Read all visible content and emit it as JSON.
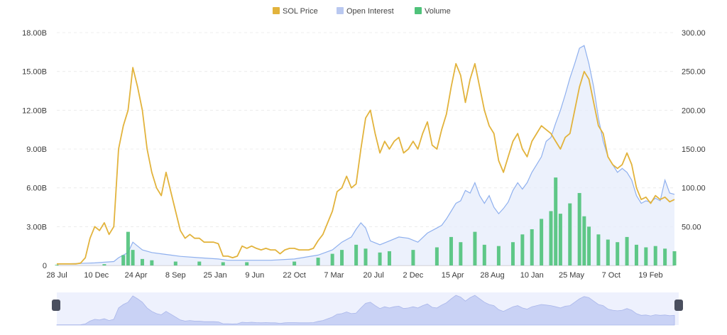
{
  "chart_data": {
    "type": "line",
    "legend": [
      {
        "name": "SOL Price",
        "color": "#E2B33C"
      },
      {
        "name": "Open Interest",
        "color": "#B9C8F0"
      },
      {
        "name": "Volume",
        "color": "#4FC27A"
      }
    ],
    "legend_position": "top-center",
    "grid": true,
    "y_left_ticks": [
      "0",
      "3.00B",
      "6.00B",
      "9.00B",
      "12.00B",
      "15.00B",
      "18.00B"
    ],
    "y_left_range": [
      0,
      18
    ],
    "y_right_ticks": [
      "50.00",
      "100.00",
      "150.00",
      "200.00",
      "250.00",
      "300.00"
    ],
    "y_right_range": [
      0,
      300
    ],
    "x_ticks": [
      "28 Jul",
      "10 Dec",
      "24 Apr",
      "8 Sep",
      "25 Jan",
      "9 Jun",
      "22 Oct",
      "7 Mar",
      "20 Jul",
      "2 Dec",
      "15 Apr",
      "28 Aug",
      "10 Jan",
      "25 May",
      "7 Oct",
      "19 Feb"
    ],
    "series": [
      {
        "name": "SOL Price",
        "axis": "right",
        "values": [
          [
            0,
            2
          ],
          [
            2,
            2
          ],
          [
            4,
            2
          ],
          [
            5,
            3
          ],
          [
            6,
            10
          ],
          [
            7,
            35
          ],
          [
            8,
            50
          ],
          [
            9,
            45
          ],
          [
            10,
            55
          ],
          [
            11,
            40
          ],
          [
            12,
            50
          ],
          [
            13,
            150
          ],
          [
            14,
            180
          ],
          [
            15,
            200
          ],
          [
            16,
            255
          ],
          [
            17,
            230
          ],
          [
            18,
            200
          ],
          [
            19,
            150
          ],
          [
            20,
            120
          ],
          [
            21,
            100
          ],
          [
            22,
            90
          ],
          [
            23,
            120
          ],
          [
            24,
            95
          ],
          [
            25,
            70
          ],
          [
            26,
            45
          ],
          [
            27,
            35
          ],
          [
            28,
            40
          ],
          [
            29,
            35
          ],
          [
            30,
            35
          ],
          [
            31,
            30
          ],
          [
            32,
            30
          ],
          [
            33,
            30
          ],
          [
            34,
            28
          ],
          [
            35,
            12
          ],
          [
            36,
            12
          ],
          [
            37,
            10
          ],
          [
            38,
            12
          ],
          [
            39,
            25
          ],
          [
            40,
            22
          ],
          [
            41,
            25
          ],
          [
            42,
            22
          ],
          [
            43,
            20
          ],
          [
            44,
            22
          ],
          [
            45,
            20
          ],
          [
            46,
            20
          ],
          [
            47,
            15
          ],
          [
            48,
            20
          ],
          [
            49,
            22
          ],
          [
            50,
            22
          ],
          [
            51,
            20
          ],
          [
            52,
            20
          ],
          [
            53,
            20
          ],
          [
            54,
            22
          ],
          [
            55,
            32
          ],
          [
            56,
            40
          ],
          [
            57,
            55
          ],
          [
            58,
            70
          ],
          [
            59,
            95
          ],
          [
            60,
            100
          ],
          [
            61,
            115
          ],
          [
            62,
            100
          ],
          [
            63,
            105
          ],
          [
            64,
            150
          ],
          [
            65,
            190
          ],
          [
            66,
            200
          ],
          [
            67,
            170
          ],
          [
            68,
            145
          ],
          [
            69,
            160
          ],
          [
            70,
            150
          ],
          [
            71,
            160
          ],
          [
            72,
            165
          ],
          [
            73,
            145
          ],
          [
            74,
            150
          ],
          [
            75,
            160
          ],
          [
            76,
            150
          ],
          [
            77,
            170
          ],
          [
            78,
            185
          ],
          [
            79,
            155
          ],
          [
            80,
            150
          ],
          [
            81,
            175
          ],
          [
            82,
            195
          ],
          [
            83,
            230
          ],
          [
            84,
            260
          ],
          [
            85,
            245
          ],
          [
            86,
            210
          ],
          [
            87,
            240
          ],
          [
            88,
            260
          ],
          [
            89,
            230
          ],
          [
            90,
            200
          ],
          [
            91,
            180
          ],
          [
            92,
            170
          ],
          [
            93,
            135
          ],
          [
            94,
            120
          ],
          [
            95,
            140
          ],
          [
            96,
            160
          ],
          [
            97,
            170
          ],
          [
            98,
            150
          ],
          [
            99,
            140
          ],
          [
            100,
            160
          ],
          [
            101,
            170
          ],
          [
            102,
            180
          ],
          [
            103,
            175
          ],
          [
            104,
            170
          ],
          [
            105,
            160
          ],
          [
            106,
            150
          ],
          [
            107,
            165
          ],
          [
            108,
            170
          ],
          [
            109,
            200
          ],
          [
            110,
            230
          ],
          [
            111,
            250
          ],
          [
            112,
            240
          ],
          [
            113,
            210
          ],
          [
            114,
            180
          ],
          [
            115,
            170
          ],
          [
            116,
            140
          ],
          [
            117,
            130
          ],
          [
            118,
            125
          ],
          [
            119,
            130
          ],
          [
            120,
            145
          ],
          [
            121,
            130
          ],
          [
            122,
            100
          ],
          [
            123,
            85
          ],
          [
            124,
            88
          ],
          [
            125,
            80
          ],
          [
            126,
            90
          ],
          [
            127,
            85
          ],
          [
            128,
            88
          ],
          [
            129,
            82
          ],
          [
            130,
            85
          ]
        ]
      },
      {
        "name": "Open Interest",
        "axis": "left",
        "values": [
          [
            0,
            0.1
          ],
          [
            8,
            0.2
          ],
          [
            12,
            0.3
          ],
          [
            13,
            0.6
          ],
          [
            15,
            1.0
          ],
          [
            16,
            1.8
          ],
          [
            17,
            1.5
          ],
          [
            18,
            1.2
          ],
          [
            20,
            1.0
          ],
          [
            22,
            0.9
          ],
          [
            24,
            0.8
          ],
          [
            26,
            0.7
          ],
          [
            30,
            0.6
          ],
          [
            34,
            0.5
          ],
          [
            36,
            0.4
          ],
          [
            40,
            0.4
          ],
          [
            45,
            0.4
          ],
          [
            50,
            0.5
          ],
          [
            55,
            0.8
          ],
          [
            58,
            1.2
          ],
          [
            60,
            1.8
          ],
          [
            62,
            2.2
          ],
          [
            63,
            2.8
          ],
          [
            64,
            3.3
          ],
          [
            65,
            2.9
          ],
          [
            66,
            1.9
          ],
          [
            68,
            1.6
          ],
          [
            70,
            1.9
          ],
          [
            72,
            2.2
          ],
          [
            74,
            2.1
          ],
          [
            76,
            1.8
          ],
          [
            78,
            2.5
          ],
          [
            80,
            2.9
          ],
          [
            81,
            3.1
          ],
          [
            82,
            3.6
          ],
          [
            83,
            4.2
          ],
          [
            84,
            4.8
          ],
          [
            85,
            5.0
          ],
          [
            86,
            5.8
          ],
          [
            87,
            5.6
          ],
          [
            88,
            6.4
          ],
          [
            89,
            5.4
          ],
          [
            90,
            4.8
          ],
          [
            91,
            5.4
          ],
          [
            92,
            4.5
          ],
          [
            93,
            4.0
          ],
          [
            94,
            4.4
          ],
          [
            95,
            4.9
          ],
          [
            96,
            5.8
          ],
          [
            97,
            6.4
          ],
          [
            98,
            5.9
          ],
          [
            99,
            6.4
          ],
          [
            100,
            7.2
          ],
          [
            101,
            7.8
          ],
          [
            102,
            8.4
          ],
          [
            103,
            9.6
          ],
          [
            104,
            9.9
          ],
          [
            105,
            11.0
          ],
          [
            106,
            12.0
          ],
          [
            107,
            13.2
          ],
          [
            108,
            14.5
          ],
          [
            109,
            15.6
          ],
          [
            110,
            16.8
          ],
          [
            111,
            17.0
          ],
          [
            112,
            15.6
          ],
          [
            113,
            13.8
          ],
          [
            114,
            11.4
          ],
          [
            115,
            9.6
          ],
          [
            116,
            8.4
          ],
          [
            117,
            7.8
          ],
          [
            118,
            7.2
          ],
          [
            119,
            7.5
          ],
          [
            120,
            7.2
          ],
          [
            121,
            6.6
          ],
          [
            122,
            5.4
          ],
          [
            123,
            4.8
          ],
          [
            124,
            5.0
          ],
          [
            125,
            4.9
          ],
          [
            126,
            5.2
          ],
          [
            127,
            5.0
          ],
          [
            128,
            6.6
          ],
          [
            129,
            5.6
          ],
          [
            130,
            5.5
          ]
        ]
      },
      {
        "name": "Volume",
        "axis": "left",
        "values": [
          [
            0,
            0.05
          ],
          [
            10,
            0.1
          ],
          [
            14,
            0.8
          ],
          [
            15,
            2.6
          ],
          [
            16,
            1.2
          ],
          [
            18,
            0.5
          ],
          [
            20,
            0.4
          ],
          [
            25,
            0.3
          ],
          [
            30,
            0.3
          ],
          [
            35,
            0.25
          ],
          [
            40,
            0.25
          ],
          [
            50,
            0.3
          ],
          [
            55,
            0.6
          ],
          [
            58,
            0.9
          ],
          [
            60,
            1.2
          ],
          [
            63,
            1.6
          ],
          [
            65,
            1.3
          ],
          [
            68,
            1.0
          ],
          [
            70,
            1.1
          ],
          [
            75,
            1.2
          ],
          [
            80,
            1.4
          ],
          [
            83,
            2.2
          ],
          [
            85,
            1.8
          ],
          [
            88,
            2.6
          ],
          [
            90,
            1.6
          ],
          [
            93,
            1.5
          ],
          [
            96,
            1.8
          ],
          [
            98,
            2.4
          ],
          [
            100,
            2.8
          ],
          [
            102,
            3.6
          ],
          [
            104,
            4.2
          ],
          [
            105,
            6.8
          ],
          [
            106,
            4.0
          ],
          [
            108,
            4.8
          ],
          [
            110,
            5.6
          ],
          [
            111,
            3.8
          ],
          [
            112,
            3.0
          ],
          [
            114,
            2.4
          ],
          [
            116,
            2.0
          ],
          [
            118,
            1.8
          ],
          [
            120,
            2.2
          ],
          [
            122,
            1.6
          ],
          [
            124,
            1.4
          ],
          [
            126,
            1.5
          ],
          [
            128,
            1.3
          ],
          [
            130,
            1.1
          ]
        ]
      }
    ],
    "navigator": {
      "visible": true
    }
  }
}
